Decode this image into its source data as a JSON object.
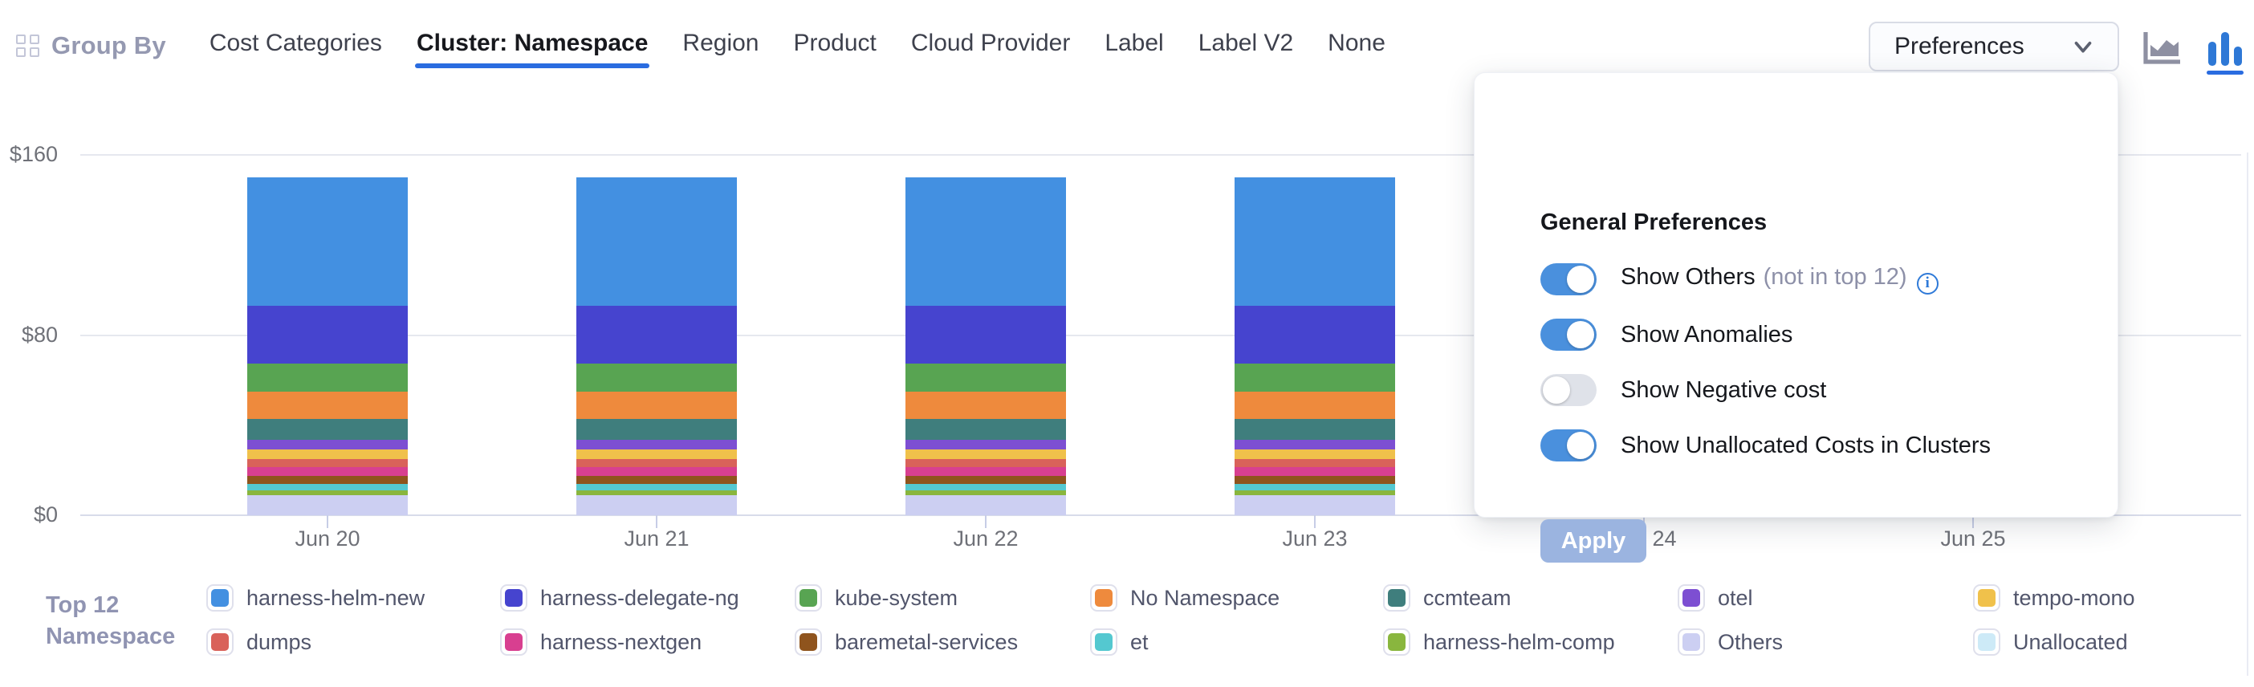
{
  "header": {
    "group_by_label": "Group By",
    "tabs": [
      {
        "label": "Cost Categories",
        "selected": false
      },
      {
        "label": "Cluster: Namespace",
        "selected": true
      },
      {
        "label": "Region",
        "selected": false
      },
      {
        "label": "Product",
        "selected": false
      },
      {
        "label": "Cloud Provider",
        "selected": false
      },
      {
        "label": "Label",
        "selected": false
      },
      {
        "label": "Label V2",
        "selected": false
      },
      {
        "label": "None",
        "selected": false
      }
    ],
    "preferences_button_label": "Preferences",
    "chart_type_toggle": {
      "area_chart_selected": false,
      "bar_chart_selected": true
    },
    "accent_color": "#2a6ce0"
  },
  "preferences_panel": {
    "title": "General Preferences",
    "toggles": [
      {
        "label": "Show Others",
        "suffix": "(not in top 12)",
        "has_info_icon": true,
        "on": true
      },
      {
        "label": "Show Anomalies",
        "suffix": "",
        "has_info_icon": false,
        "on": true
      },
      {
        "label": "Show Negative cost",
        "suffix": "",
        "has_info_icon": false,
        "on": false
      },
      {
        "label": "Show Unallocated Costs in Clusters",
        "suffix": "",
        "has_info_icon": false,
        "on": true
      }
    ],
    "apply_label": "Apply",
    "toggle_on_color": "#4a90dd",
    "apply_color": "#9bb4e0"
  },
  "chart_data": {
    "type": "bar",
    "stacked": true,
    "x_tick_labels": [
      "Jun 20",
      "Jun 21",
      "Jun 22",
      "Jun 23",
      "Jun 24",
      "Jun 25"
    ],
    "visible_bar_days": [
      "Jun 20",
      "Jun 21",
      "Jun 22",
      "Jun 23"
    ],
    "note": "Bars for Jun 24 and Jun 25 are hidden behind the open Preferences panel",
    "y_ticks": [
      {
        "label": "$0",
        "value": 0
      },
      {
        "label": "$80",
        "value": 80
      },
      {
        "label": "$160",
        "value": 160
      }
    ],
    "ylim": [
      0,
      160
    ],
    "currency": "$",
    "approx_total_per_day": 150,
    "stack_order": "top_to_bottom",
    "series": [
      {
        "name": "harness-helm-new",
        "color": "#4390e1",
        "values": [
          57,
          57,
          57,
          57
        ]
      },
      {
        "name": "harness-delegate-ng",
        "color": "#4644cf",
        "values": [
          25.6,
          25.6,
          25.6,
          25.6
        ]
      },
      {
        "name": "kube-system",
        "color": "#58a452",
        "values": [
          12.5,
          12.5,
          12.5,
          12.5
        ]
      },
      {
        "name": "No Namespace",
        "color": "#ee8a3d",
        "values": [
          12.1,
          12.1,
          12.1,
          12.1
        ]
      },
      {
        "name": "ccmteam",
        "color": "#3f7e7d",
        "values": [
          9.3,
          9.3,
          9.3,
          9.3
        ]
      },
      {
        "name": "otel",
        "color": "#7d4fd2",
        "values": [
          4.3,
          4.3,
          4.3,
          4.3
        ]
      },
      {
        "name": "tempo-mono",
        "color": "#f0c14b",
        "values": [
          4.3,
          4.3,
          4.3,
          4.3
        ]
      },
      {
        "name": "dumps",
        "color": "#d9625a",
        "values": [
          3.6,
          3.6,
          3.6,
          3.6
        ]
      },
      {
        "name": "harness-nextgen",
        "color": "#d83f90",
        "values": [
          3.9,
          3.9,
          3.9,
          3.9
        ]
      },
      {
        "name": "baremetal-services",
        "color": "#8f541d",
        "values": [
          3.6,
          3.6,
          3.6,
          3.6
        ]
      },
      {
        "name": "et",
        "color": "#54c8d0",
        "values": [
          2.9,
          2.9,
          2.9,
          2.9
        ]
      },
      {
        "name": "harness-helm-comp",
        "color": "#89b63e",
        "values": [
          2.1,
          2.1,
          2.1,
          2.1
        ]
      },
      {
        "name": "Others",
        "color": "#cccff2",
        "values": [
          8.9,
          8.9,
          8.9,
          8.9
        ]
      },
      {
        "name": "Unallocated",
        "color": "#cdeaf7",
        "values": [
          0,
          0,
          0,
          0
        ]
      }
    ]
  },
  "legend": {
    "title_lines": [
      "Top 12",
      "Namespace"
    ],
    "columns": [
      [
        {
          "label": "harness-helm-new",
          "color": "#4390e1"
        },
        {
          "label": "dumps",
          "color": "#d9625a"
        }
      ],
      [
        {
          "label": "harness-delegate-ng",
          "color": "#4644cf"
        },
        {
          "label": "harness-nextgen",
          "color": "#d83f90"
        }
      ],
      [
        {
          "label": "kube-system",
          "color": "#58a452"
        },
        {
          "label": "baremetal-services",
          "color": "#8f541d"
        }
      ],
      [
        {
          "label": "No Namespace",
          "color": "#ee8a3d"
        },
        {
          "label": "et",
          "color": "#54c8d0"
        }
      ],
      [
        {
          "label": "ccmteam",
          "color": "#3f7e7d"
        },
        {
          "label": "harness-helm-comp",
          "color": "#89b63e"
        }
      ],
      [
        {
          "label": "otel",
          "color": "#7d4fd2"
        },
        {
          "label": "Others",
          "color": "#cccff2"
        }
      ],
      [
        {
          "label": "tempo-mono",
          "color": "#f0c14b"
        },
        {
          "label": "Unallocated",
          "color": "#cdeaf7"
        }
      ]
    ]
  }
}
